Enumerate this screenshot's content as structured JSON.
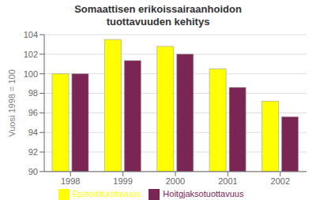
{
  "chart_data": {
    "type": "bar",
    "title": "Somaattisen erikoissairaanhoidon\ntuottavuuden kehitys",
    "categories": [
      "1998",
      "1999",
      "2000",
      "2001",
      "2002"
    ],
    "series": [
      {
        "name": "Episodituottavuus",
        "color": "#FFFF00",
        "values": [
          100.0,
          103.5,
          102.8,
          100.5,
          97.2
        ]
      },
      {
        "name": "Hoitgjaksotuottavuus",
        "color": "#7B2555",
        "values": [
          100.0,
          101.35,
          102.0,
          98.6,
          95.6
        ]
      }
    ],
    "ylabel": "Vuosi 1998 = 100",
    "ylim": [
      90,
      104
    ],
    "yticks": [
      90,
      92,
      94,
      96,
      98,
      100,
      102,
      104
    ],
    "grid": true,
    "legend": "bottom"
  }
}
